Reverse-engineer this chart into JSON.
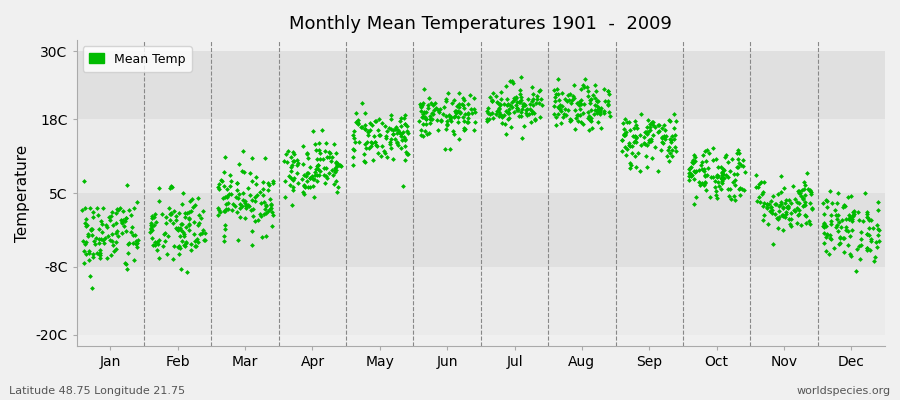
{
  "title": "Monthly Mean Temperatures 1901  -  2009",
  "ylabel": "Temperature",
  "xlabel_labels": [
    "Jan",
    "Feb",
    "Mar",
    "Apr",
    "May",
    "Jun",
    "Jul",
    "Aug",
    "Sep",
    "Oct",
    "Nov",
    "Dec"
  ],
  "ytick_labels": [
    "30C",
    "18C",
    "5C",
    "-8C",
    "-20C"
  ],
  "ytick_values": [
    30,
    18,
    5,
    -8,
    -20
  ],
  "ylim": [
    -22,
    32
  ],
  "bg_color": "#f0f0f0",
  "band_colors": [
    "#ebebeb",
    "#e0e0e0"
  ],
  "dot_color": "#00bb00",
  "dot_size": 6,
  "legend_label": "Mean Temp",
  "subtitle_left": "Latitude 48.75 Longitude 21.75",
  "subtitle_right": "worldspecies.org",
  "monthly_means": [
    -2.5,
    -1.5,
    4.0,
    9.5,
    15.0,
    18.5,
    20.5,
    20.0,
    14.5,
    8.5,
    3.0,
    -1.0
  ],
  "monthly_stds": [
    3.5,
    3.5,
    3.0,
    2.5,
    2.5,
    2.0,
    2.0,
    2.0,
    2.5,
    2.5,
    2.5,
    3.0
  ],
  "n_years": 109,
  "seed": 42
}
